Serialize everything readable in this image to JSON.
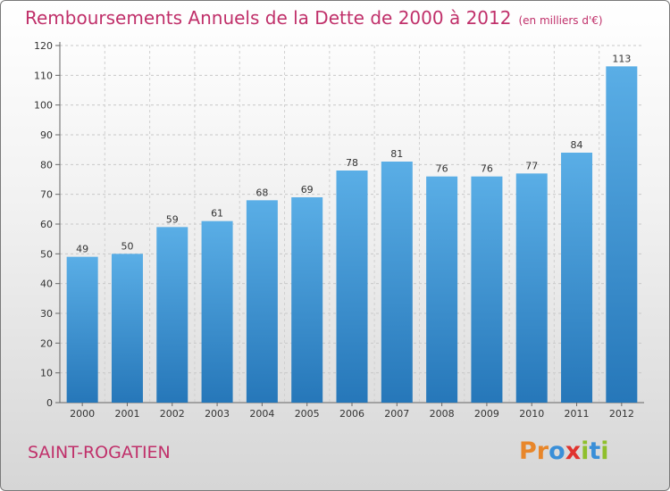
{
  "chart_data": {
    "type": "bar",
    "title": "Remboursements Annuels de la Dette de 2000 à 2012",
    "unit_label": "(en milliers d'€)",
    "categories": [
      "2000",
      "2001",
      "2002",
      "2003",
      "2004",
      "2005",
      "2006",
      "2007",
      "2008",
      "2009",
      "2010",
      "2011",
      "2012"
    ],
    "values": [
      49,
      50,
      59,
      61,
      68,
      69,
      78,
      81,
      76,
      76,
      77,
      84,
      113
    ],
    "ylim": [
      0,
      120
    ],
    "yticks": [
      0,
      10,
      20,
      30,
      40,
      50,
      60,
      70,
      80,
      90,
      100,
      110,
      120
    ],
    "xlabel": "",
    "ylabel": "",
    "grid": true,
    "colors": {
      "bar_top": "#5aaee6",
      "bar_bottom": "#2677b9",
      "title": "#c0306a"
    }
  },
  "commune_name": "SAINT-ROGATIEN",
  "logo": {
    "letters": [
      {
        "char": "P",
        "color": "#e8862a"
      },
      {
        "char": "r",
        "color": "#e8862a"
      },
      {
        "char": "o",
        "color": "#3a8fd8"
      },
      {
        "char": "x",
        "color": "#e0332e"
      },
      {
        "char": "i",
        "color": "#8fbf2c"
      },
      {
        "char": "t",
        "color": "#3a8fd8"
      },
      {
        "char": "i",
        "color": "#8fbf2c"
      }
    ]
  }
}
